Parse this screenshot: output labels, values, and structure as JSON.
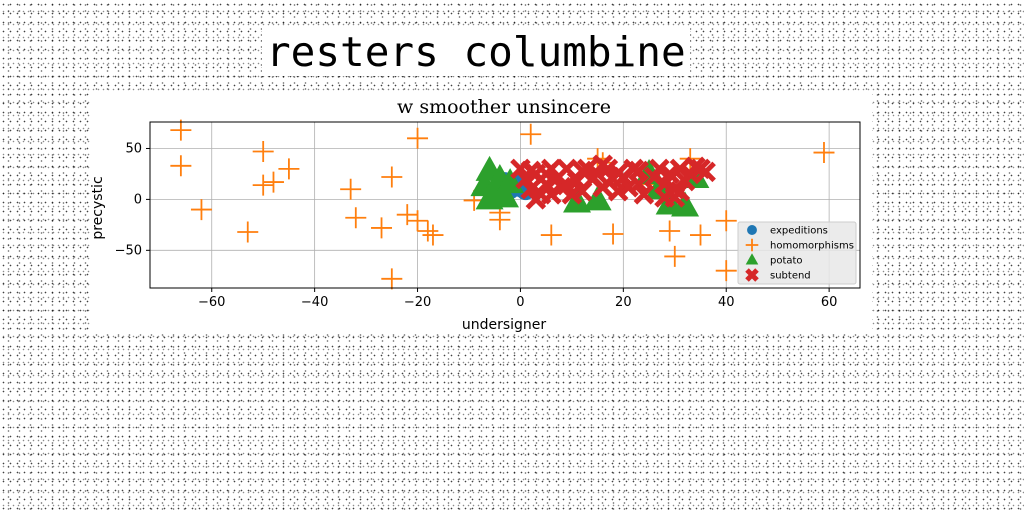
{
  "page": {
    "title": "resters columbine"
  },
  "chart_data": {
    "type": "scatter",
    "subtitle": "w smoother unsincere",
    "xlabel": "undersigner",
    "ylabel": "precystic",
    "xlim": [
      -72,
      66
    ],
    "ylim": [
      -87,
      76
    ],
    "xticks": [
      -60,
      -40,
      -20,
      0,
      20,
      40,
      60
    ],
    "yticks": [
      -50,
      0,
      50
    ],
    "grid": true,
    "legend_position": "lower-right",
    "series": [
      {
        "name": "expeditions",
        "color": "#1f77b4",
        "marker": "circle",
        "points": [
          [
            -4,
            14
          ],
          [
            -2,
            10
          ],
          [
            -1,
            15
          ],
          [
            0,
            12
          ],
          [
            1,
            9
          ],
          [
            -3,
            17
          ]
        ]
      },
      {
        "name": "homomorphisms",
        "color": "#ff7f0e",
        "marker": "plus",
        "points": [
          [
            -66,
            68
          ],
          [
            -66,
            33
          ],
          [
            -62,
            -10
          ],
          [
            -53,
            -32
          ],
          [
            -50,
            47
          ],
          [
            -50,
            14
          ],
          [
            -48,
            17
          ],
          [
            -45,
            30
          ],
          [
            -33,
            10
          ],
          [
            -32,
            -18
          ],
          [
            -27,
            -28
          ],
          [
            -25,
            22
          ],
          [
            -25,
            -78
          ],
          [
            -22,
            -15
          ],
          [
            -20,
            60
          ],
          [
            -20,
            -21
          ],
          [
            -18,
            -31
          ],
          [
            -17,
            -35
          ],
          [
            -4,
            -13
          ],
          [
            -4,
            -20
          ],
          [
            2,
            64
          ],
          [
            6,
            -35
          ],
          [
            15,
            40
          ],
          [
            16,
            36
          ],
          [
            18,
            -34
          ],
          [
            29,
            -31
          ],
          [
            30,
            -56
          ],
          [
            33,
            40
          ],
          [
            35,
            -35
          ],
          [
            40,
            -21
          ],
          [
            40,
            -70
          ],
          [
            59,
            46
          ],
          [
            -9,
            -1
          ],
          [
            25,
            15
          ]
        ]
      },
      {
        "name": "potato",
        "color": "#2ca02c",
        "marker": "triangle",
        "points": [
          [
            -6,
            28
          ],
          [
            -7,
            13
          ],
          [
            -5,
            6
          ],
          [
            -4,
            20
          ],
          [
            -3,
            2
          ],
          [
            -6,
            0
          ],
          [
            -2,
            16
          ],
          [
            11,
            -3
          ],
          [
            15,
            -1
          ],
          [
            29,
            -5
          ],
          [
            32,
            -7
          ],
          [
            34,
            21
          ],
          [
            25,
            25
          ],
          [
            27,
            10
          ]
        ]
      },
      {
        "name": "subtend",
        "color": "#d62728",
        "marker": "x",
        "points": [
          [
            0,
            30
          ],
          [
            1,
            20
          ],
          [
            2,
            10
          ],
          [
            3,
            25
          ],
          [
            4,
            5
          ],
          [
            5,
            15
          ],
          [
            6,
            30
          ],
          [
            7,
            20
          ],
          [
            3,
            0
          ],
          [
            5,
            25
          ],
          [
            8,
            12
          ],
          [
            9,
            30
          ],
          [
            10,
            5
          ],
          [
            11,
            18
          ],
          [
            12,
            8
          ],
          [
            13,
            30
          ],
          [
            14,
            20
          ],
          [
            15,
            25
          ],
          [
            16,
            12
          ],
          [
            17,
            30
          ],
          [
            18,
            20
          ],
          [
            19,
            8
          ],
          [
            20,
            22
          ],
          [
            21,
            12
          ],
          [
            22,
            30
          ],
          [
            23,
            15
          ],
          [
            24,
            5
          ],
          [
            26,
            22
          ],
          [
            27,
            30
          ],
          [
            28,
            15
          ],
          [
            29,
            25
          ],
          [
            30,
            10
          ],
          [
            30,
            2
          ],
          [
            31,
            30
          ],
          [
            32,
            18
          ],
          [
            33,
            25
          ],
          [
            34,
            32
          ],
          [
            35,
            30
          ],
          [
            2,
            28
          ],
          [
            6,
            5
          ],
          [
            9,
            14
          ],
          [
            12,
            28
          ],
          [
            16,
            34
          ],
          [
            19,
            26
          ],
          [
            23,
            28
          ],
          [
            28,
            2
          ],
          [
            31,
            8
          ],
          [
            36,
            27
          ]
        ]
      }
    ]
  }
}
